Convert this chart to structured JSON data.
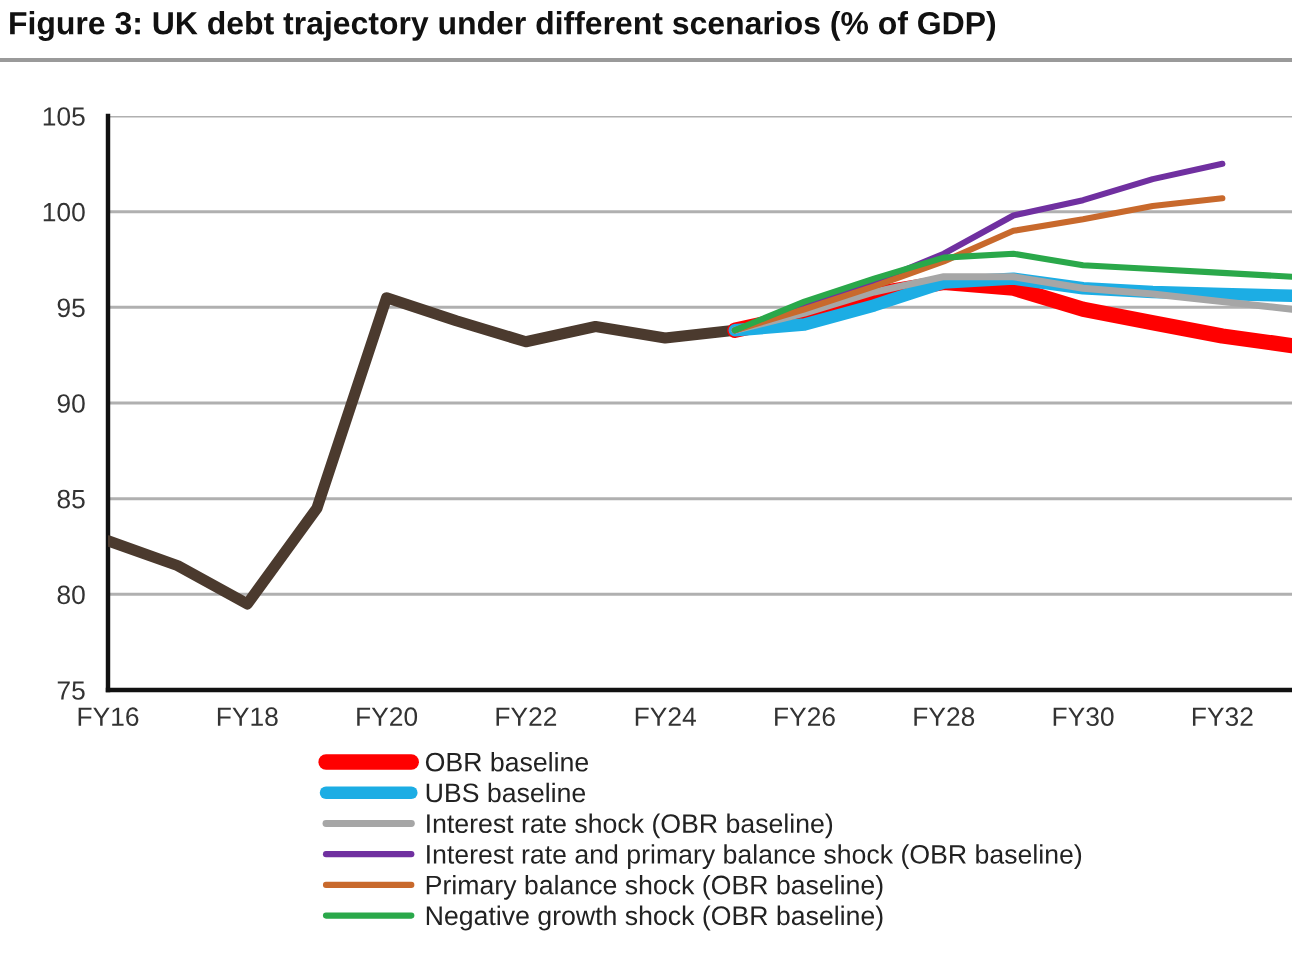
{
  "chart_data": {
    "type": "line",
    "title": "Figure 3: UK debt trajectory under different scenarios (% of GDP)",
    "categories": [
      "FY16",
      null,
      "FY18",
      null,
      "FY20",
      null,
      "FY22",
      null,
      "FY24",
      null,
      "FY26",
      null,
      "FY28",
      null,
      "FY30",
      null,
      "FY32",
      null
    ],
    "ylim": [
      75,
      105
    ],
    "yticks": [
      75,
      80,
      85,
      90,
      95,
      100,
      105
    ],
    "grid": "y",
    "legend": "bottom",
    "series": [
      {
        "color": "#4b3a2e",
        "values": [
          82.8,
          81.5,
          79.5,
          84.5,
          95.5,
          94.3,
          93.2,
          94.0,
          93.4,
          93.8,
          null,
          null,
          null,
          null,
          null,
          null,
          null,
          null
        ]
      },
      {
        "name": "OBR baseline",
        "color": "#ff0000",
        "values": [
          null,
          null,
          null,
          null,
          null,
          null,
          null,
          null,
          null,
          93.8,
          94.6,
          95.7,
          96.3,
          96.0,
          94.9,
          94.2,
          93.5,
          93.0
        ]
      },
      {
        "name": "UBS baseline",
        "color": "#1cade4",
        "values": [
          null,
          null,
          null,
          null,
          null,
          null,
          null,
          null,
          null,
          93.8,
          94.1,
          95.1,
          96.3,
          96.5,
          96.0,
          95.8,
          95.7,
          95.6
        ]
      },
      {
        "name": "Interest rate shock (OBR baseline)",
        "color": "#a6a6a6",
        "values": [
          null,
          null,
          null,
          null,
          null,
          null,
          null,
          null,
          null,
          93.8,
          94.7,
          95.8,
          96.6,
          96.6,
          96.0,
          95.7,
          95.3,
          94.9
        ]
      },
      {
        "name": "Interest rate and primary balance shock (OBR baseline)",
        "color": "#7030a0",
        "values": [
          null,
          null,
          null,
          null,
          null,
          null,
          null,
          null,
          null,
          93.8,
          95.1,
          96.3,
          97.8,
          99.8,
          100.6,
          101.7,
          102.5,
          null
        ]
      },
      {
        "name": "Primary balance shock (OBR baseline)",
        "color": "#c8692c",
        "values": [
          null,
          null,
          null,
          null,
          null,
          null,
          null,
          null,
          null,
          93.8,
          94.9,
          96.1,
          97.4,
          99.0,
          99.6,
          100.3,
          100.7,
          null
        ]
      },
      {
        "name": "Negative growth shock (OBR baseline)",
        "color": "#2aa84a",
        "values": [
          null,
          null,
          null,
          null,
          null,
          null,
          null,
          null,
          null,
          93.8,
          95.3,
          96.5,
          97.6,
          97.8,
          97.2,
          97.0,
          96.8,
          96.6
        ]
      }
    ]
  }
}
